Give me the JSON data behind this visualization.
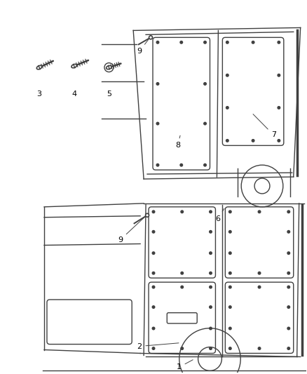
{
  "background_color": "#ffffff",
  "line_color": "#404040",
  "label_color": "#000000",
  "fig_width": 4.38,
  "fig_height": 5.33,
  "dpi": 100,
  "lw": 1.0
}
